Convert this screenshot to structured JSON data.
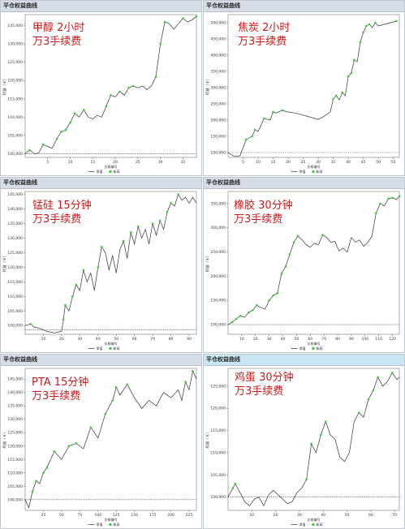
{
  "window_title": "平仓权益曲线",
  "axis": {
    "ylabel": "权益（￥）",
    "xlabel": "交易编号"
  },
  "legend": {
    "net": "净值",
    "high": "新高"
  },
  "colors": {
    "line": "#333333",
    "highs": "#3ec83e",
    "baseline": "#555555"
  },
  "chart_data": [
    {
      "type": "line",
      "name": "panel_jiachun",
      "annotation": [
        "甲醇  2小时",
        "万3手续费"
      ],
      "xlim": [
        0,
        38
      ],
      "ylim": [
        99000,
        138000
      ],
      "yticks": [
        100000,
        105000,
        110000,
        115000,
        120000,
        125000,
        130000,
        135000
      ],
      "yticklabels": [
        "100,000",
        "105,000",
        "110,000",
        "115,000",
        "120,000",
        "125,000",
        "130,000",
        "135,000"
      ],
      "xticks": [
        5,
        10,
        15,
        20,
        25,
        30,
        35
      ],
      "baseline": 100000,
      "x": [
        0,
        1,
        2,
        3,
        4,
        5,
        6,
        7,
        8,
        9,
        10,
        11,
        12,
        13,
        14,
        15,
        16,
        17,
        18,
        19,
        20,
        21,
        22,
        23,
        24,
        25,
        26,
        27,
        28,
        29,
        30,
        31,
        32,
        33,
        34,
        35,
        36,
        37,
        38
      ],
      "values": [
        100000,
        101000,
        100000,
        100200,
        102500,
        102000,
        101500,
        104000,
        106000,
        106500,
        108500,
        111000,
        110000,
        112000,
        110000,
        109500,
        110500,
        110000,
        113000,
        116000,
        115500,
        117000,
        116000,
        118000,
        118500,
        118000,
        118500,
        117500,
        118500,
        121000,
        130000,
        136000,
        135500,
        134000,
        135500,
        137000,
        136000,
        136500,
        137500
      ]
    },
    {
      "type": "line",
      "name": "panel_jiaotan",
      "annotation": [
        "焦炭  2小时",
        "万3手续费"
      ],
      "xlim": [
        0,
        57
      ],
      "ylim": [
        85000,
        525000
      ],
      "yticks": [
        100000,
        150000,
        200000,
        250000,
        300000,
        350000,
        400000,
        450000,
        500000
      ],
      "yticklabels": [
        "100,000",
        "150,000",
        "200,000",
        "250,000",
        "300,000",
        "350,000",
        "400,000",
        "450,000",
        "500,000"
      ],
      "xticks": [
        5,
        10,
        15,
        20,
        25,
        30,
        35,
        40,
        45,
        50,
        55
      ],
      "baseline": 100000,
      "x": [
        0,
        2,
        4,
        6,
        8,
        9,
        10,
        12,
        14,
        15,
        16,
        18,
        20,
        22,
        24,
        27,
        30,
        32,
        34,
        35,
        36,
        37,
        38,
        39,
        40,
        41,
        42,
        43,
        44,
        45,
        46,
        47,
        48,
        49,
        50,
        52,
        54,
        56
      ],
      "values": [
        100000,
        88000,
        90000,
        140000,
        150000,
        170000,
        165000,
        205000,
        200000,
        225000,
        222000,
        230000,
        225000,
        222000,
        218000,
        210000,
        202000,
        212000,
        225000,
        265000,
        275000,
        262000,
        285000,
        275000,
        335000,
        345000,
        385000,
        380000,
        440000,
        470000,
        490000,
        495000,
        485000,
        500000,
        490000,
        495000,
        500000,
        505000
      ]
    },
    {
      "type": "line",
      "name": "panel_mengui",
      "annotation": [
        "锰硅  15分钟",
        "万3手续费"
      ],
      "xlim": [
        0,
        94
      ],
      "ylim": [
        97000,
        146000
      ],
      "yticks": [
        100000,
        105000,
        110000,
        115000,
        120000,
        125000,
        130000,
        135000,
        140000,
        145000
      ],
      "yticklabels": [
        "100,000",
        "105,000",
        "110,000",
        "115,000",
        "120,000",
        "125,000",
        "130,000",
        "135,000",
        "140,000",
        "145,000"
      ],
      "xticks": [
        10,
        20,
        30,
        40,
        50,
        60,
        70,
        80,
        90
      ],
      "baseline": 98500,
      "x": [
        0,
        3,
        5,
        8,
        12,
        16,
        20,
        21,
        22,
        24,
        26,
        28,
        30,
        32,
        34,
        36,
        38,
        40,
        42,
        44,
        46,
        48,
        50,
        52,
        54,
        56,
        58,
        60,
        62,
        64,
        66,
        68,
        70,
        72,
        74,
        76,
        78,
        80,
        82,
        84,
        86,
        88,
        90,
        92,
        94
      ],
      "values": [
        100000,
        100500,
        99500,
        99000,
        98000,
        97500,
        98000,
        102000,
        107000,
        105000,
        110000,
        114000,
        112000,
        119000,
        115000,
        118000,
        112000,
        120000,
        127000,
        125000,
        119000,
        124000,
        118000,
        126000,
        129000,
        123000,
        132000,
        128000,
        134000,
        130000,
        133000,
        128000,
        135000,
        131000,
        136000,
        133000,
        139000,
        142000,
        141000,
        145000,
        143000,
        144000,
        142000,
        144000,
        142000
      ]
    },
    {
      "type": "line",
      "name": "panel_xiangjiao",
      "annotation": [
        "橡胶  30分钟",
        "万3手续费"
      ],
      "xlim": [
        0,
        125
      ],
      "ylim": [
        80000,
        375000
      ],
      "yticks": [
        100000,
        150000,
        200000,
        250000,
        300000,
        350000
      ],
      "yticklabels": [
        "100,000",
        "150,000",
        "200,000",
        "250,000",
        "300,000",
        "350,000"
      ],
      "xticks": [
        10,
        20,
        30,
        40,
        50,
        60,
        70,
        80,
        90,
        100,
        110,
        120
      ],
      "baseline": 100000,
      "x": [
        0,
        3,
        6,
        9,
        12,
        15,
        18,
        21,
        24,
        27,
        30,
        33,
        36,
        39,
        42,
        45,
        48,
        51,
        54,
        57,
        60,
        63,
        66,
        69,
        72,
        75,
        78,
        81,
        84,
        87,
        90,
        93,
        96,
        99,
        102,
        105,
        108,
        111,
        114,
        117,
        120,
        123,
        125
      ],
      "values": [
        100000,
        105000,
        112000,
        118000,
        115000,
        125000,
        130000,
        140000,
        135000,
        132000,
        150000,
        160000,
        165000,
        205000,
        220000,
        245000,
        270000,
        283000,
        275000,
        265000,
        260000,
        268000,
        265000,
        285000,
        280000,
        270000,
        272000,
        252000,
        258000,
        250000,
        280000,
        270000,
        275000,
        262000,
        270000,
        282000,
        330000,
        350000,
        345000,
        360000,
        362000,
        358000,
        365000
      ]
    },
    {
      "type": "line",
      "name": "panel_pta",
      "annotation": [
        "PTA  15分钟",
        "万3手续费"
      ],
      "xlim": [
        0,
        235
      ],
      "ylim": [
        96000,
        149000
      ],
      "yticks": [
        100000,
        105000,
        110000,
        115000,
        120000,
        125000,
        130000,
        135000,
        140000,
        145000
      ],
      "yticklabels": [
        "100,000",
        "105,000",
        "110,000",
        "115,000",
        "120,000",
        "125,000",
        "130,000",
        "135,000",
        "140,000",
        "145,000"
      ],
      "xticks": [
        25,
        50,
        75,
        100,
        125,
        150,
        175,
        200,
        225
      ],
      "baseline": 100000,
      "x": [
        0,
        5,
        10,
        15,
        20,
        25,
        30,
        40,
        50,
        60,
        70,
        80,
        90,
        100,
        110,
        120,
        125,
        130,
        140,
        150,
        160,
        170,
        180,
        190,
        200,
        210,
        215,
        220,
        225,
        230,
        235
      ],
      "values": [
        100000,
        97000,
        103000,
        107000,
        106000,
        110000,
        112000,
        118000,
        115000,
        120000,
        121000,
        119000,
        127000,
        123000,
        132000,
        137000,
        142000,
        139000,
        143000,
        138000,
        134000,
        137000,
        135000,
        140000,
        138000,
        141000,
        137000,
        144000,
        141000,
        148000,
        145000
      ]
    },
    {
      "type": "line",
      "name": "panel_jidan",
      "annotation": [
        "鸡蛋  30分钟",
        "万3手续费"
      ],
      "xlim": [
        0,
        72
      ],
      "ylim": [
        97000,
        129000
      ],
      "yticks": [
        100000,
        105000,
        110000,
        115000,
        120000,
        125000
      ],
      "yticklabels": [
        "100,000",
        "105,000",
        "110,000",
        "115,000",
        "120,000",
        "125,000"
      ],
      "xticks": [
        10,
        20,
        30,
        40,
        50,
        60,
        70
      ],
      "baseline": 100000,
      "x": [
        0,
        2,
        3,
        5,
        7,
        9,
        11,
        13,
        15,
        17,
        19,
        21,
        23,
        25,
        27,
        29,
        31,
        33,
        35,
        37,
        39,
        41,
        43,
        45,
        47,
        49,
        51,
        53,
        55,
        57,
        59,
        61,
        63,
        65,
        67,
        69,
        71,
        72
      ],
      "values": [
        100000,
        102000,
        103000,
        101000,
        99000,
        98000,
        99500,
        100000,
        98000,
        100500,
        101500,
        100500,
        99500,
        98500,
        99000,
        101000,
        102000,
        104000,
        112000,
        110000,
        114000,
        117000,
        114000,
        113000,
        109000,
        108000,
        110000,
        117000,
        119000,
        118000,
        122000,
        124000,
        127000,
        125000,
        126000,
        128000,
        126500,
        127000
      ]
    }
  ]
}
